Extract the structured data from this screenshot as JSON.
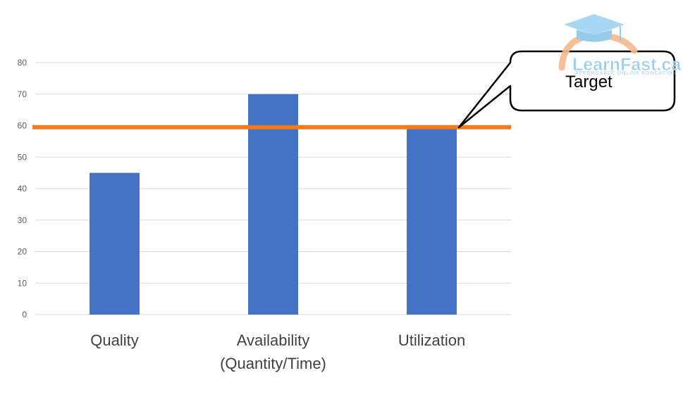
{
  "chart_data": {
    "type": "bar",
    "categories": [
      "Quality",
      "Availability\n(Quantity/Time)",
      "Utilization"
    ],
    "values": [
      45,
      70,
      59
    ],
    "ylim": [
      0,
      80
    ],
    "yticks": [
      0,
      10,
      20,
      30,
      40,
      50,
      60,
      70,
      80
    ],
    "grid": true,
    "target": {
      "label": "Target",
      "value": 59.5
    },
    "colors": {
      "bar": "#4472C4",
      "target_line": "#F47A1F",
      "grid": "#D9D9D9"
    }
  },
  "logo": {
    "name": "LearnFast.ca",
    "tagline": "AFFORDABLE ONLINE EDUCATION",
    "colors": {
      "text": "#8FC9EE",
      "arc": "#F7B98D"
    }
  }
}
